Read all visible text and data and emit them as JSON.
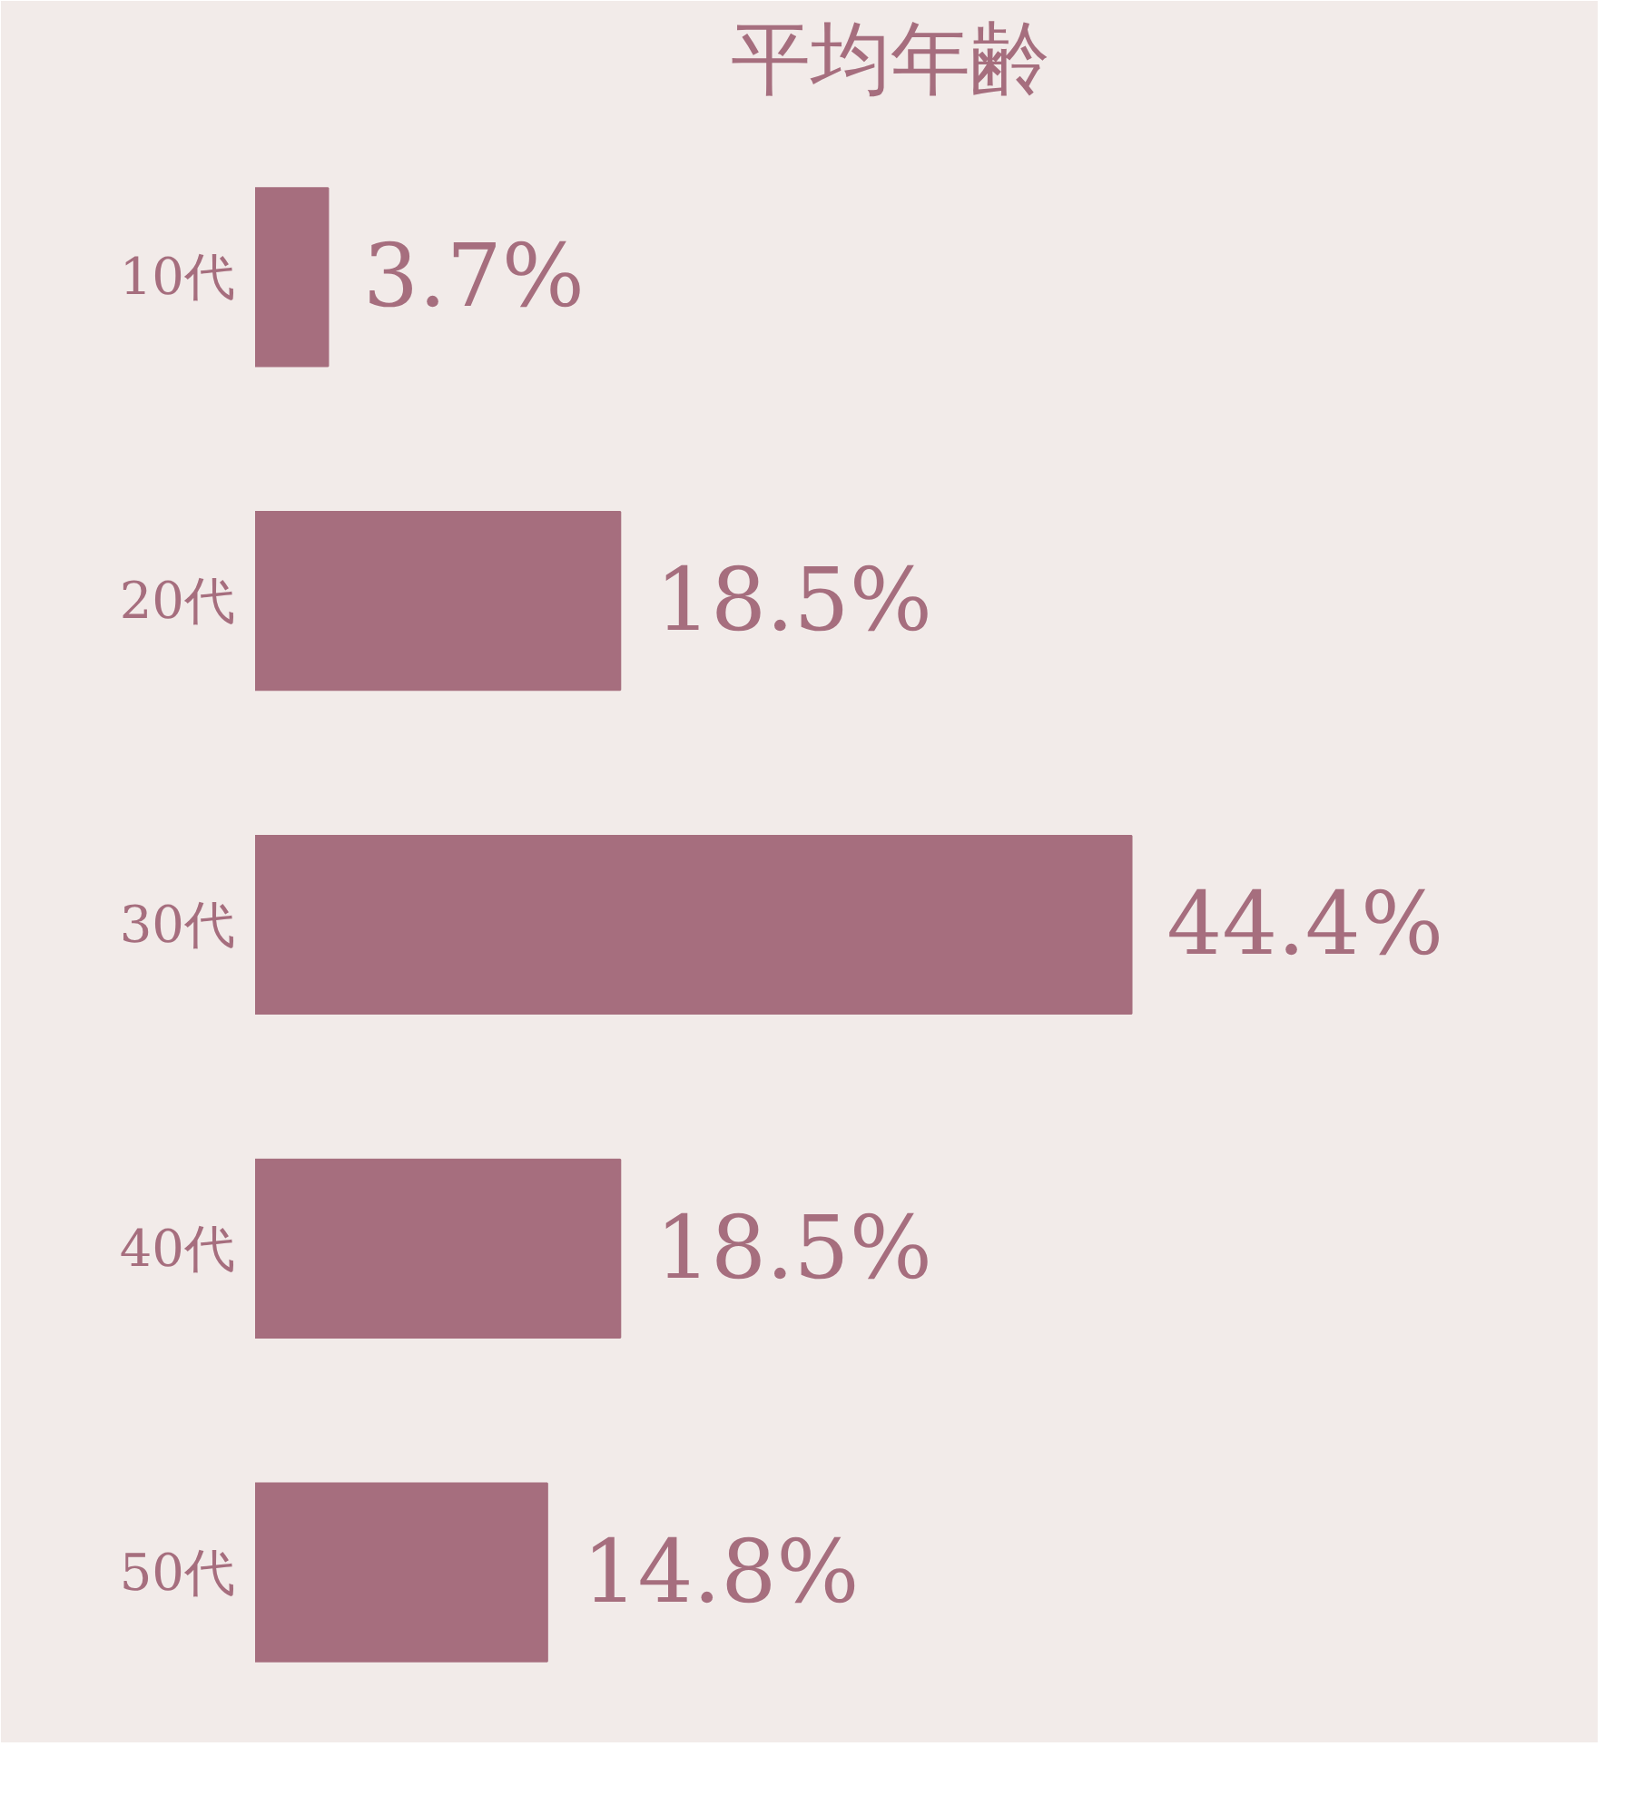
{
  "chart_data": {
    "type": "bar",
    "orientation": "horizontal",
    "title": "平均年齢",
    "categories": [
      "10代",
      "20代",
      "30代",
      "40代",
      "50代"
    ],
    "values": [
      3.7,
      18.5,
      44.4,
      18.5,
      14.8
    ],
    "value_labels": [
      "3.7%",
      "18.5%",
      "44.4%",
      "18.5%",
      "14.8%"
    ],
    "color": "#a66e7e",
    "grid": false
  }
}
